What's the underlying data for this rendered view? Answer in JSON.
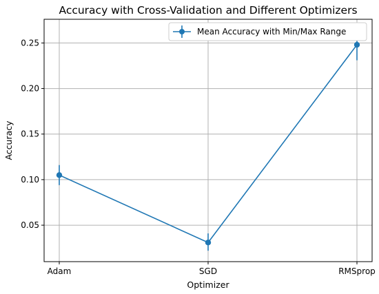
{
  "chart_data": {
    "type": "line",
    "title": "Accuracy with Cross-Validation and Different Optimizers",
    "xlabel": "Optimizer",
    "ylabel": "Accuracy",
    "categories": [
      "Adam",
      "SGD",
      "RMSprop"
    ],
    "series": [
      {
        "name": "Mean Accuracy with Min/Max Range",
        "values": [
          0.105,
          0.031,
          0.248
        ],
        "min": [
          0.094,
          0.022,
          0.231
        ],
        "max": [
          0.116,
          0.041,
          0.255
        ],
        "color": "#1f77b4"
      }
    ],
    "yticks": [
      0.05,
      0.1,
      0.15,
      0.2,
      0.25
    ],
    "ytick_labels": [
      "0.05",
      "0.10",
      "0.15",
      "0.20",
      "0.25"
    ],
    "ylim": [
      0.01,
      0.276
    ],
    "grid": true,
    "legend_position": "top-right"
  }
}
